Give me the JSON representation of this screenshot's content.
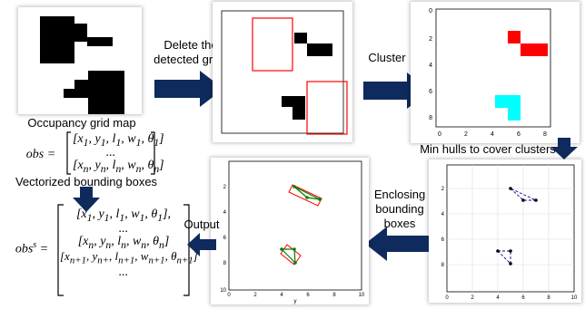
{
  "labels": {
    "occupancy_grid_map": "Occupancy grid map",
    "delete_detected": "Delete the\ndetected grids",
    "cluster": "Cluster",
    "min_hulls": "Min hulls to cover clusters",
    "enclosing_boxes": "Enclosing\nbounding\nboxes",
    "output": "Output",
    "vectorized_boxes": "Vectorized bounding boxes"
  },
  "math": {
    "obs_lhs": "obs =",
    "obs_row1": "[x1, y1, l1, w1, θ1]",
    "obs_dots": "...",
    "obs_rown": "[xn, yn, ln, wn, θn]",
    "obs_s_lhs": "obs^s =",
    "obs_s_row1": "[x1, y1, l1, w1, θ1],",
    "obs_s_dots1": "...",
    "obs_s_rown": "[xn, yn, ln, wn, θn]",
    "obs_s_rown1": "[xn+1, yn+, ln+1, wn+1, θn+1]",
    "obs_s_dots2": "..."
  },
  "colors": {
    "arrow": "#0f2a5c",
    "red": "#ff0000",
    "cyan": "#00ffff",
    "green": "#008000",
    "navy": "#00008b"
  },
  "cluster_plot": {
    "yticks": [
      "0",
      "2",
      "4",
      "6",
      "8"
    ],
    "xticks": [
      "0",
      "2",
      "4",
      "6",
      "8"
    ]
  },
  "hull_plot": {
    "yticks": [
      "2",
      "4",
      "6",
      "8"
    ],
    "xticks": [
      "0",
      "2",
      "4",
      "6",
      "8",
      "10"
    ]
  },
  "output_plot": {
    "yticks": [
      "2",
      "4",
      "6",
      "8",
      "10"
    ],
    "xticks": [
      "0",
      "2",
      "4",
      "6",
      "8",
      "10"
    ],
    "xlabel": "y"
  }
}
